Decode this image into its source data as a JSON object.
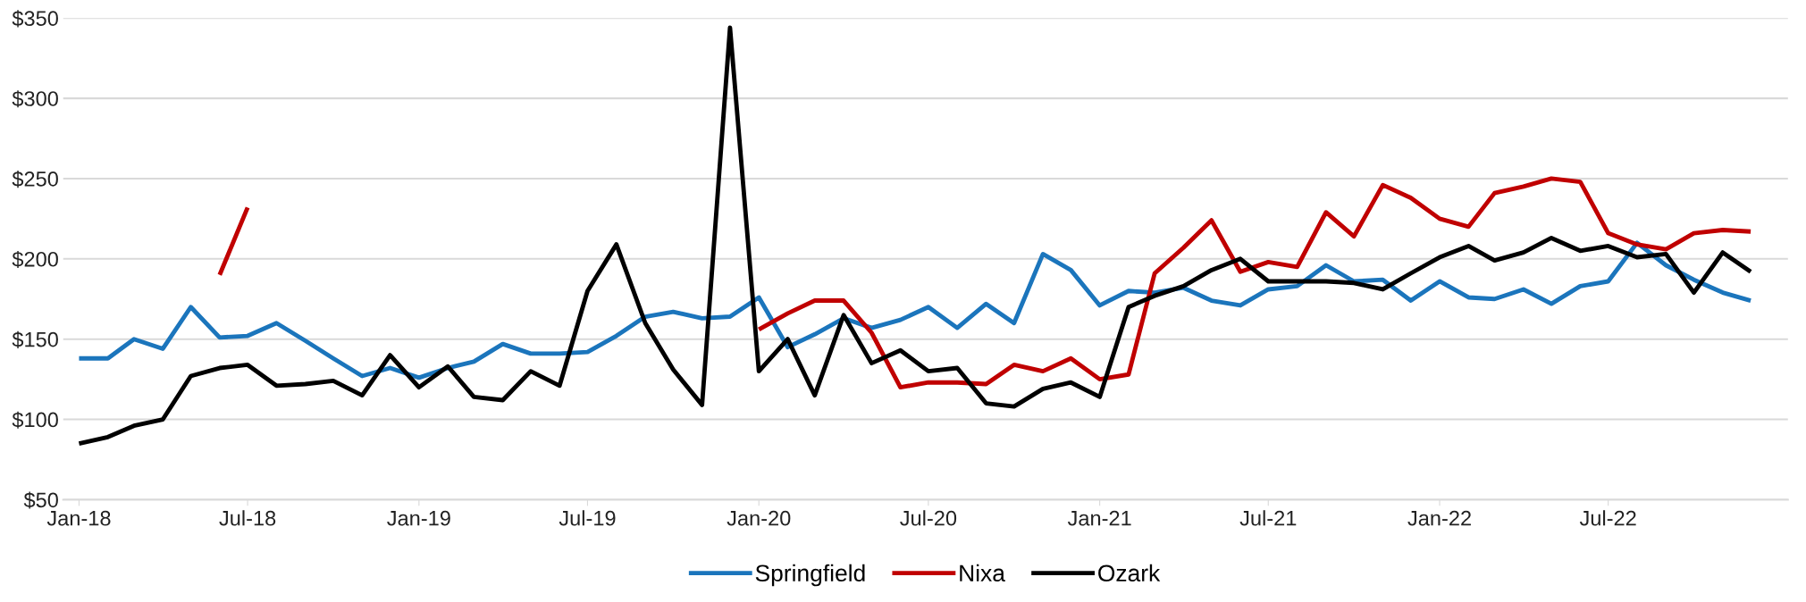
{
  "chart_data": {
    "type": "line",
    "x": [
      "2018-01",
      "2018-02",
      "2018-03",
      "2018-04",
      "2018-05",
      "2018-06",
      "2018-07",
      "2018-08",
      "2018-09",
      "2018-10",
      "2018-11",
      "2018-12",
      "2019-01",
      "2019-02",
      "2019-03",
      "2019-04",
      "2019-05",
      "2019-06",
      "2019-07",
      "2019-08",
      "2019-09",
      "2019-10",
      "2019-11",
      "2019-12",
      "2020-01",
      "2020-02",
      "2020-03",
      "2020-04",
      "2020-05",
      "2020-06",
      "2020-07",
      "2020-08",
      "2020-09",
      "2020-10",
      "2020-11",
      "2020-12",
      "2021-01",
      "2021-02",
      "2021-03",
      "2021-04",
      "2021-05",
      "2021-06",
      "2021-07",
      "2021-08",
      "2021-09",
      "2021-10",
      "2021-11",
      "2021-12",
      "2022-01",
      "2022-02",
      "2022-03",
      "2022-04",
      "2022-05",
      "2022-06",
      "2022-07",
      "2022-08",
      "2022-09",
      "2022-10",
      "2022-11",
      "2022-12"
    ],
    "series": [
      {
        "name": "Springfield",
        "color": "#1b75bc",
        "values": [
          138,
          138,
          150,
          144,
          170,
          151,
          152,
          160,
          149,
          138,
          127,
          132,
          126,
          132,
          136,
          147,
          141,
          141,
          142,
          152,
          164,
          167,
          163,
          164,
          176,
          145,
          153,
          163,
          157,
          162,
          170,
          157,
          172,
          160,
          203,
          193,
          171,
          180,
          179,
          182,
          174,
          171,
          181,
          183,
          196,
          186,
          187,
          174,
          186,
          176,
          175,
          181,
          172,
          183,
          186,
          210,
          196,
          187,
          179,
          174
        ]
      },
      {
        "name": "Nixa",
        "color": "#c00000",
        "values": [
          null,
          null,
          null,
          null,
          null,
          190,
          232,
          null,
          null,
          null,
          null,
          null,
          null,
          null,
          null,
          null,
          null,
          null,
          null,
          null,
          null,
          null,
          null,
          null,
          156,
          166,
          174,
          174,
          154,
          120,
          123,
          123,
          122,
          134,
          130,
          138,
          125,
          128,
          191,
          207,
          224,
          192,
          198,
          195,
          229,
          214,
          246,
          238,
          225,
          220,
          241,
          245,
          250,
          248,
          216,
          209,
          206,
          216,
          218,
          217
        ]
      },
      {
        "name": "Ozark",
        "color": "#000000",
        "values": [
          85,
          89,
          96,
          100,
          127,
          132,
          134,
          121,
          122,
          124,
          115,
          140,
          120,
          133,
          114,
          112,
          130,
          121,
          180,
          209,
          160,
          131,
          109,
          344,
          130,
          150,
          115,
          165,
          135,
          143,
          130,
          132,
          110,
          108,
          119,
          123,
          114,
          170,
          177,
          183,
          193,
          200,
          186,
          186,
          186,
          185,
          181,
          191,
          201,
          208,
          199,
          204,
          213,
          205,
          208,
          201,
          203,
          179,
          204,
          192
        ]
      }
    ],
    "xlim": [
      "2017-12-15",
      "2023-01-10"
    ],
    "xticks": [
      {
        "value": "2018-01",
        "label": "Jan-18"
      },
      {
        "value": "2018-07",
        "label": "Jul-18"
      },
      {
        "value": "2019-01",
        "label": "Jan-19"
      },
      {
        "value": "2019-07",
        "label": "Jul-19"
      },
      {
        "value": "2020-01",
        "label": "Jan-20"
      },
      {
        "value": "2020-07",
        "label": "Jul-20"
      },
      {
        "value": "2021-01",
        "label": "Jan-21"
      },
      {
        "value": "2021-07",
        "label": "Jul-21"
      },
      {
        "value": "2022-01",
        "label": "Jan-22"
      },
      {
        "value": "2022-07",
        "label": "Jul-22"
      }
    ],
    "ylim": [
      50,
      350
    ],
    "yticks": [
      {
        "value": 50,
        "label": "$50"
      },
      {
        "value": 100,
        "label": "$100"
      },
      {
        "value": 150,
        "label": "$150"
      },
      {
        "value": 200,
        "label": "$200"
      },
      {
        "value": 250,
        "label": "$250"
      },
      {
        "value": 300,
        "label": "$300"
      },
      {
        "value": 350,
        "label": "$350"
      }
    ],
    "grid": "y",
    "legend": "bottom",
    "marker": "none",
    "line_style": "solid"
  }
}
